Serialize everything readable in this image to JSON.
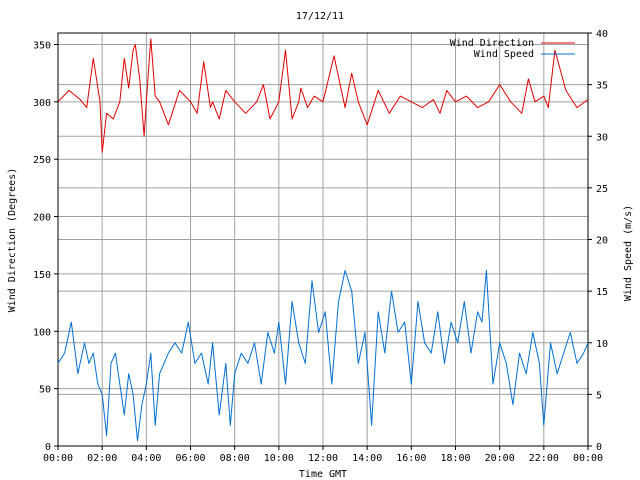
{
  "chart_data": {
    "type": "line",
    "title": "17/12/11",
    "xlabel": "Time GMT",
    "ylabel_left": "Wind Direction (Degrees)",
    "ylabel_right": "Wind Speed (m/s)",
    "x_unit": "hours GMT",
    "xlim": [
      0,
      24
    ],
    "ylim_left": [
      0,
      360
    ],
    "ylim_right": [
      0,
      40
    ],
    "x_ticks": [
      "00:00",
      "02:00",
      "04:00",
      "06:00",
      "08:00",
      "10:00",
      "12:00",
      "14:00",
      "16:00",
      "18:00",
      "20:00",
      "22:00",
      "00:00"
    ],
    "y_ticks_left": [
      "0",
      "50",
      "100",
      "150",
      "200",
      "250",
      "300",
      "350"
    ],
    "y_ticks_right": [
      "0",
      "5",
      "10",
      "15",
      "20",
      "25",
      "30",
      "35",
      "40"
    ],
    "grid": true,
    "legend_placement": "top-right",
    "series": [
      {
        "name": "Wind Direction",
        "axis": "left",
        "color": "#e00000",
        "x": [
          0,
          0.5,
          1,
          1.3,
          1.6,
          1.9,
          2.0,
          2.2,
          2.5,
          2.8,
          3.0,
          3.2,
          3.4,
          3.5,
          3.7,
          3.9,
          4.0,
          4.2,
          4.4,
          4.6,
          5.0,
          5.5,
          6.0,
          6.3,
          6.6,
          6.9,
          7.0,
          7.3,
          7.6,
          8.0,
          8.5,
          9.0,
          9.3,
          9.6,
          10.0,
          10.3,
          10.6,
          10.9,
          11.0,
          11.3,
          11.6,
          12.0,
          12.5,
          13.0,
          13.3,
          13.6,
          14.0,
          14.5,
          15.0,
          15.5,
          16.0,
          16.5,
          17.0,
          17.3,
          17.6,
          18.0,
          18.5,
          19.0,
          19.5,
          20.0,
          20.5,
          21.0,
          21.3,
          21.6,
          22.0,
          22.2,
          22.5,
          23.0,
          23.5,
          24.0
        ],
        "values": [
          300,
          310,
          302,
          295,
          338,
          300,
          256,
          290,
          285,
          300,
          338,
          312,
          345,
          350,
          320,
          270,
          300,
          355,
          305,
          300,
          280,
          310,
          300,
          290,
          335,
          295,
          300,
          285,
          310,
          300,
          290,
          300,
          315,
          285,
          300,
          345,
          285,
          300,
          312,
          295,
          305,
          300,
          340,
          295,
          325,
          300,
          280,
          310,
          290,
          305,
          300,
          295,
          302,
          290,
          310,
          300,
          305,
          295,
          300,
          315,
          300,
          290,
          320,
          300,
          305,
          295,
          345,
          310,
          295,
          302
        ]
      },
      {
        "name": "Wind Speed",
        "axis": "right",
        "color": "#0070d0",
        "x": [
          0,
          0.3,
          0.6,
          0.9,
          1.2,
          1.4,
          1.6,
          1.8,
          2.0,
          2.2,
          2.4,
          2.6,
          2.8,
          3.0,
          3.2,
          3.4,
          3.6,
          3.8,
          4.0,
          4.2,
          4.4,
          4.6,
          4.8,
          5.0,
          5.3,
          5.6,
          5.9,
          6.2,
          6.5,
          6.8,
          7.0,
          7.3,
          7.6,
          7.8,
          8.0,
          8.3,
          8.6,
          8.9,
          9.2,
          9.5,
          9.8,
          10.0,
          10.3,
          10.6,
          10.9,
          11.2,
          11.5,
          11.8,
          12.1,
          12.4,
          12.7,
          13.0,
          13.3,
          13.6,
          13.9,
          14.2,
          14.5,
          14.8,
          15.1,
          15.4,
          15.7,
          16.0,
          16.3,
          16.6,
          16.9,
          17.2,
          17.5,
          17.8,
          18.1,
          18.4,
          18.7,
          19.0,
          19.2,
          19.4,
          19.7,
          20.0,
          20.3,
          20.6,
          20.9,
          21.2,
          21.5,
          21.8,
          22.0,
          22.3,
          22.6,
          22.9,
          23.2,
          23.5,
          23.8,
          24.0
        ],
        "values": [
          8,
          9,
          12,
          7,
          10,
          8,
          9,
          6,
          5,
          1,
          8,
          9,
          6,
          3,
          7,
          5,
          0.5,
          4,
          6,
          9,
          2,
          7,
          8,
          9,
          10,
          9,
          12,
          8,
          9,
          6,
          10,
          3,
          8,
          2,
          7,
          9,
          8,
          10,
          6,
          11,
          9,
          12,
          6,
          14,
          10,
          8,
          16,
          11,
          13,
          6,
          14,
          17,
          15,
          8,
          11,
          2,
          13,
          9,
          15,
          11,
          12,
          6,
          14,
          10,
          9,
          13,
          8,
          12,
          10,
          14,
          9,
          13,
          12,
          17,
          6,
          10,
          8,
          4,
          9,
          7,
          11,
          8,
          2,
          10,
          7,
          9,
          11,
          8,
          9,
          10
        ]
      }
    ]
  },
  "legend": {
    "direction_label": "Wind Direction",
    "speed_label": "Wind Speed"
  }
}
